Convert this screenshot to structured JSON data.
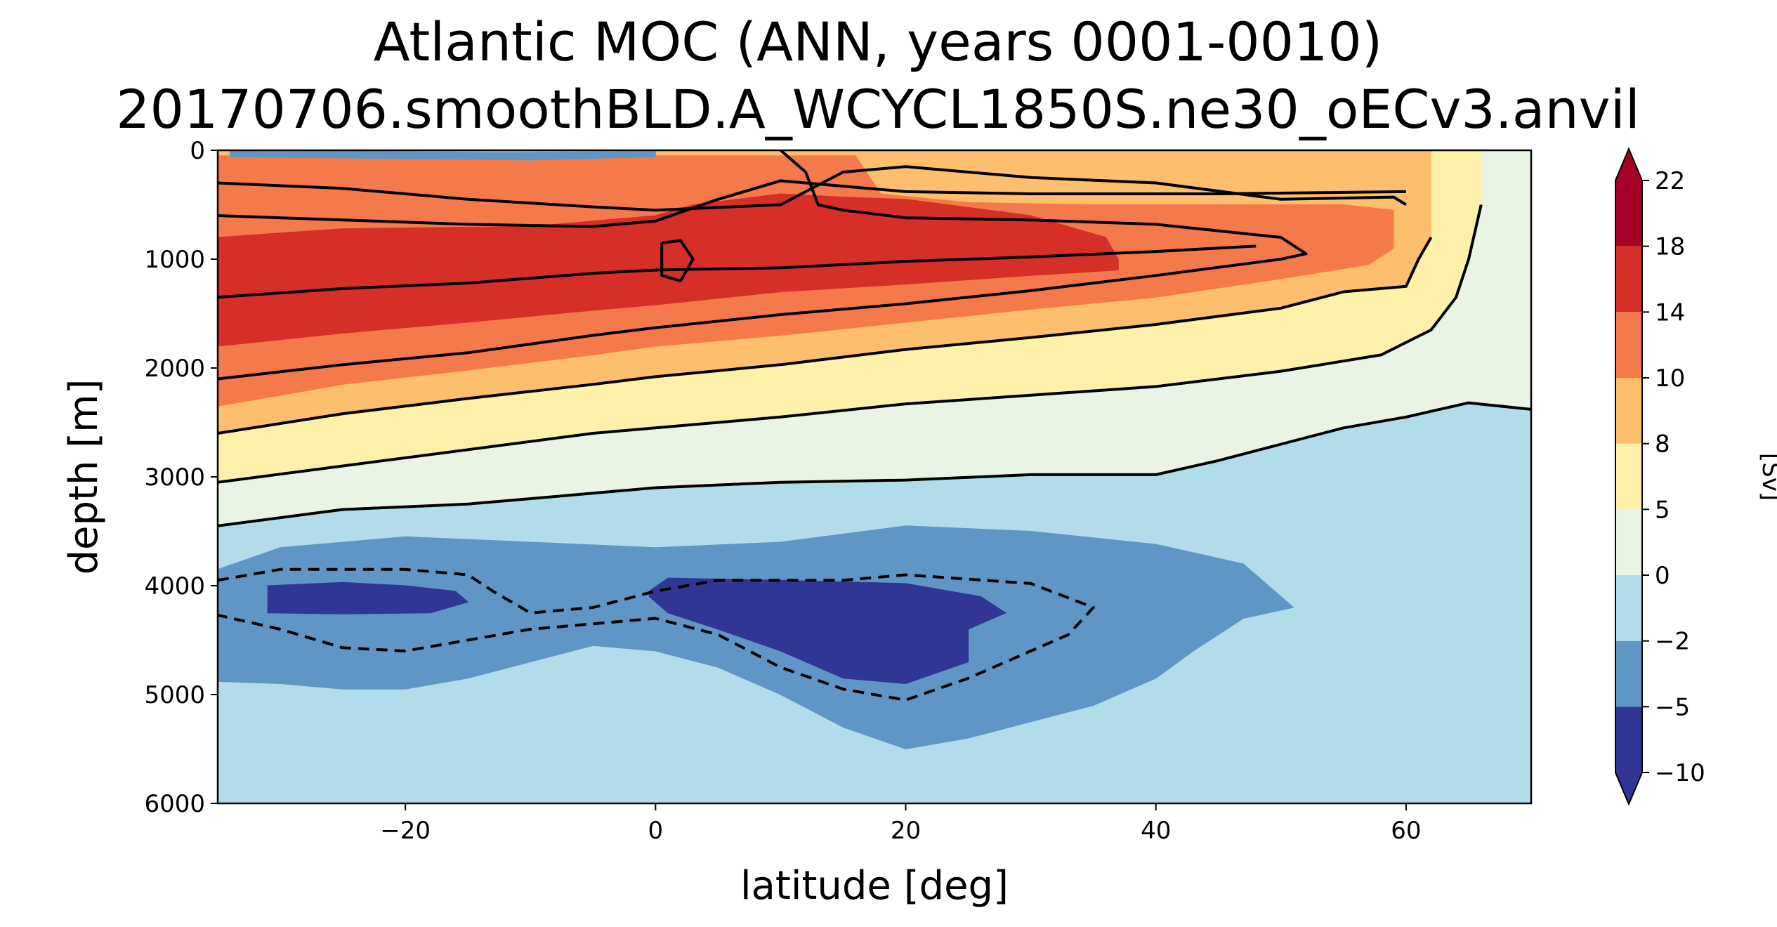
{
  "chart_data": {
    "type": "heatmap",
    "title": "Atlantic MOC (ANN, years 0001-0010)",
    "subtitle": "20170706.smoothBLD.A_WCYCL1850S.ne30_oECv3.anvil",
    "xlabel": "latitude [deg]",
    "ylabel": "depth [m]",
    "xlim": [
      -35,
      70
    ],
    "ylim": [
      6000,
      0
    ],
    "xticks": [
      -20,
      0,
      20,
      40,
      60
    ],
    "xtick_labels": [
      "−20",
      "0",
      "20",
      "40",
      "60"
    ],
    "yticks": [
      0,
      1000,
      2000,
      3000,
      4000,
      5000,
      6000
    ],
    "ytick_labels": [
      "0",
      "1000",
      "2000",
      "3000",
      "4000",
      "5000",
      "6000"
    ],
    "colorbar": {
      "label": "[Sv]",
      "levels": [
        -10,
        -5,
        -2,
        0,
        5,
        8,
        10,
        14,
        18,
        22
      ],
      "level_labels": [
        "−10",
        "−5",
        "−2",
        "0",
        "5",
        "8",
        "10",
        "14",
        "18",
        "22"
      ],
      "colors": [
        "#313695",
        "#6096c5",
        "#b3dcea",
        "#e9f4e4",
        "#fdf1aa",
        "#fdbe6e",
        "#f57a4b",
        "#d62f27",
        "#a50026"
      ],
      "extend": "both",
      "under_color": "#313695",
      "over_color": "#a50026"
    },
    "background_color": "#b3dcea",
    "regions": [
      {
        "level": 0,
        "color": "#e9f4e4",
        "outline": [
          [
            -35,
            120
          ],
          [
            -35,
            3450
          ],
          [
            -25,
            3300
          ],
          [
            -15,
            3250
          ],
          [
            -5,
            3150
          ],
          [
            0,
            3100
          ],
          [
            10,
            3050
          ],
          [
            20,
            3030
          ],
          [
            30,
            2980
          ],
          [
            40,
            2980
          ],
          [
            45,
            2850
          ],
          [
            50,
            2700
          ],
          [
            55,
            2550
          ],
          [
            60,
            2450
          ],
          [
            65,
            2320
          ],
          [
            70,
            2380
          ],
          [
            70,
            0
          ],
          [
            -35,
            0
          ]
        ]
      },
      {
        "level": 5,
        "color": "#fdf1aa",
        "outline": [
          [
            -35,
            120
          ],
          [
            -35,
            3050
          ],
          [
            -25,
            2900
          ],
          [
            -15,
            2750
          ],
          [
            -5,
            2600
          ],
          [
            0,
            2550
          ],
          [
            10,
            2450
          ],
          [
            20,
            2330
          ],
          [
            30,
            2250
          ],
          [
            40,
            2170
          ],
          [
            50,
            2030
          ],
          [
            58,
            1880
          ],
          [
            62,
            1650
          ],
          [
            64,
            1350
          ],
          [
            65,
            1000
          ],
          [
            66,
            500
          ],
          [
            66,
            0
          ],
          [
            -35,
            0
          ]
        ]
      },
      {
        "level": 8,
        "color": "#fdbe6e",
        "outline": [
          [
            -35,
            120
          ],
          [
            -35,
            2600
          ],
          [
            -25,
            2420
          ],
          [
            -15,
            2280
          ],
          [
            -5,
            2150
          ],
          [
            0,
            2080
          ],
          [
            10,
            1970
          ],
          [
            20,
            1830
          ],
          [
            30,
            1720
          ],
          [
            40,
            1600
          ],
          [
            50,
            1450
          ],
          [
            55,
            1300
          ],
          [
            60,
            1250
          ],
          [
            61,
            1000
          ],
          [
            62,
            800
          ],
          [
            62,
            0
          ],
          [
            -35,
            0
          ]
        ]
      },
      {
        "level": 10,
        "color": "#f57a4b",
        "outline": [
          [
            -35,
            120
          ],
          [
            -35,
            2350
          ],
          [
            -25,
            2150
          ],
          [
            -15,
            2020
          ],
          [
            -5,
            1880
          ],
          [
            0,
            1800
          ],
          [
            10,
            1700
          ],
          [
            20,
            1580
          ],
          [
            30,
            1460
          ],
          [
            40,
            1350
          ],
          [
            50,
            1180
          ],
          [
            57,
            1050
          ],
          [
            59,
            900
          ],
          [
            59,
            550
          ],
          [
            55,
            500
          ],
          [
            45,
            500
          ],
          [
            35,
            500
          ],
          [
            25,
            480
          ],
          [
            18,
            400
          ],
          [
            16,
            50
          ],
          [
            10,
            50
          ],
          [
            5,
            50
          ],
          [
            -35,
            50
          ]
        ]
      },
      {
        "level": 14,
        "color": "#d62f27",
        "outline": [
          [
            -35,
            800
          ],
          [
            -35,
            1800
          ],
          [
            -25,
            1680
          ],
          [
            -15,
            1580
          ],
          [
            -5,
            1470
          ],
          [
            0,
            1420
          ],
          [
            10,
            1300
          ],
          [
            20,
            1230
          ],
          [
            30,
            1150
          ],
          [
            37,
            1100
          ],
          [
            37,
            1000
          ],
          [
            36,
            800
          ],
          [
            30,
            600
          ],
          [
            20,
            450
          ],
          [
            15,
            430
          ],
          [
            10,
            400
          ],
          [
            3,
            500
          ],
          [
            0,
            600
          ],
          [
            -10,
            700
          ],
          [
            -25,
            720
          ],
          [
            -35,
            800
          ]
        ]
      },
      {
        "level": -2,
        "color": "#6096c5",
        "outline": [
          [
            -35,
            3850
          ],
          [
            -30,
            3650
          ],
          [
            -20,
            3550
          ],
          [
            -10,
            3600
          ],
          [
            0,
            3650
          ],
          [
            10,
            3600
          ],
          [
            20,
            3450
          ],
          [
            30,
            3500
          ],
          [
            40,
            3620
          ],
          [
            47,
            3800
          ],
          [
            51,
            4200
          ],
          [
            47,
            4300
          ],
          [
            43,
            4600
          ],
          [
            40,
            4850
          ],
          [
            35,
            5100
          ],
          [
            30,
            5250
          ],
          [
            25,
            5400
          ],
          [
            20,
            5500
          ],
          [
            15,
            5300
          ],
          [
            10,
            5000
          ],
          [
            5,
            4750
          ],
          [
            0,
            4600
          ],
          [
            -5,
            4550
          ],
          [
            -10,
            4700
          ],
          [
            -15,
            4850
          ],
          [
            -20,
            4950
          ],
          [
            -25,
            4950
          ],
          [
            -30,
            4900
          ],
          [
            -35,
            4880
          ]
        ]
      },
      {
        "level": -5,
        "color": "#313695",
        "outline": [
          [
            -31,
            4000
          ],
          [
            -25,
            3970
          ],
          [
            -20,
            4000
          ],
          [
            -16,
            4050
          ],
          [
            -15,
            4150
          ],
          [
            -18,
            4250
          ],
          [
            -25,
            4260
          ],
          [
            -31,
            4250
          ]
        ]
      },
      {
        "level": -5,
        "color": "#313695",
        "outline": [
          [
            -0.5,
            4050
          ],
          [
            1,
            3930
          ],
          [
            10,
            3950
          ],
          [
            20,
            3980
          ],
          [
            26,
            4100
          ],
          [
            28,
            4250
          ],
          [
            25,
            4400
          ],
          [
            25,
            4700
          ],
          [
            20,
            4900
          ],
          [
            15,
            4850
          ],
          [
            10,
            4600
          ],
          [
            5,
            4400
          ],
          [
            1,
            4250
          ],
          [
            -0.5,
            4100
          ]
        ]
      },
      {
        "level": -10,
        "color": "#6096c5",
        "outline": [
          [
            -34,
            0
          ],
          [
            -12,
            20
          ],
          [
            0,
            10
          ],
          [
            0,
            60
          ],
          [
            -10,
            90
          ],
          [
            -34,
            60
          ]
        ]
      }
    ],
    "contours": [
      {
        "level": 5,
        "style": "solid",
        "points": [
          [
            -35,
            2600
          ],
          [
            -25,
            2420
          ],
          [
            -15,
            2280
          ],
          [
            -5,
            2150
          ],
          [
            0,
            2080
          ],
          [
            10,
            1970
          ],
          [
            20,
            1830
          ],
          [
            30,
            1720
          ],
          [
            40,
            1600
          ],
          [
            50,
            1450
          ],
          [
            55,
            1300
          ],
          [
            60,
            1250
          ],
          [
            61,
            1000
          ],
          [
            62,
            800
          ]
        ]
      },
      {
        "level": 0,
        "style": "solid",
        "points": [
          [
            -35,
            3050
          ],
          [
            -25,
            2900
          ],
          [
            -15,
            2750
          ],
          [
            -5,
            2600
          ],
          [
            0,
            2550
          ],
          [
            10,
            2450
          ],
          [
            20,
            2330
          ],
          [
            30,
            2250
          ],
          [
            40,
            2170
          ],
          [
            50,
            2030
          ],
          [
            58,
            1880
          ],
          [
            62,
            1650
          ],
          [
            64,
            1350
          ],
          [
            65,
            1000
          ],
          [
            66,
            500
          ]
        ]
      },
      {
        "level": 0,
        "style": "solid",
        "points": [
          [
            -35,
            3450
          ],
          [
            -25,
            3300
          ],
          [
            -15,
            3250
          ],
          [
            -5,
            3150
          ],
          [
            0,
            3100
          ],
          [
            10,
            3050
          ],
          [
            20,
            3030
          ],
          [
            30,
            2980
          ],
          [
            40,
            2980
          ],
          [
            45,
            2850
          ],
          [
            50,
            2700
          ],
          [
            55,
            2550
          ],
          [
            60,
            2450
          ],
          [
            65,
            2320
          ],
          [
            70,
            2380
          ]
        ]
      },
      {
        "level": 10,
        "style": "solid",
        "points": [
          [
            -35,
            1350
          ],
          [
            -25,
            1270
          ],
          [
            -15,
            1220
          ],
          [
            -5,
            1130
          ],
          [
            0,
            1100
          ],
          [
            10,
            1080
          ],
          [
            20,
            1020
          ],
          [
            30,
            980
          ],
          [
            40,
            930
          ],
          [
            48,
            880
          ]
        ]
      },
      {
        "level": 14,
        "style": "solid",
        "points": [
          [
            -35,
            2100
          ],
          [
            -25,
            1970
          ],
          [
            -15,
            1860
          ],
          [
            -5,
            1700
          ],
          [
            0,
            1630
          ],
          [
            10,
            1510
          ],
          [
            20,
            1410
          ],
          [
            30,
            1290
          ],
          [
            40,
            1150
          ],
          [
            50,
            1000
          ],
          [
            52,
            950
          ],
          [
            50,
            800
          ],
          [
            40,
            680
          ],
          [
            30,
            640
          ],
          [
            20,
            620
          ],
          [
            15,
            550
          ],
          [
            13,
            500
          ],
          [
            12,
            200
          ],
          [
            10,
            0
          ]
        ]
      },
      {
        "level": 14,
        "style": "solid",
        "points": [
          [
            -35,
            300
          ],
          [
            -25,
            350
          ],
          [
            -15,
            450
          ],
          [
            -5,
            520
          ],
          [
            0,
            550
          ],
          [
            10,
            500
          ],
          [
            15,
            200
          ],
          [
            20,
            150
          ],
          [
            30,
            250
          ],
          [
            40,
            300
          ],
          [
            50,
            450
          ],
          [
            59,
            430
          ],
          [
            60,
            500
          ]
        ]
      },
      {
        "level": 14,
        "style": "solid",
        "points": [
          [
            -35,
            600
          ],
          [
            -25,
            640
          ],
          [
            -15,
            680
          ],
          [
            -5,
            700
          ],
          [
            0,
            650
          ],
          [
            5,
            450
          ],
          [
            10,
            280
          ],
          [
            15,
            330
          ],
          [
            20,
            380
          ],
          [
            30,
            400
          ],
          [
            45,
            400
          ],
          [
            60,
            380
          ]
        ]
      },
      {
        "level": 18,
        "style": "solid",
        "points": [
          [
            0.5,
            850
          ],
          [
            2,
            830
          ],
          [
            3,
            1000
          ],
          [
            2,
            1200
          ],
          [
            0.5,
            1150
          ],
          [
            0.5,
            850
          ]
        ]
      },
      {
        "level": -2,
        "style": "dashed",
        "points": [
          [
            -35,
            3950
          ],
          [
            -30,
            3850
          ],
          [
            -25,
            3850
          ],
          [
            -20,
            3850
          ],
          [
            -15,
            3900
          ],
          [
            -13,
            4050
          ],
          [
            -10,
            4250
          ],
          [
            -5,
            4200
          ],
          [
            0,
            4050
          ],
          [
            5,
            3950
          ],
          [
            15,
            3950
          ],
          [
            20,
            3900
          ],
          [
            30,
            3980
          ],
          [
            35,
            4200
          ],
          [
            33,
            4450
          ],
          [
            30,
            4600
          ],
          [
            25,
            4850
          ],
          [
            20,
            5050
          ],
          [
            15,
            4950
          ],
          [
            10,
            4750
          ],
          [
            5,
            4450
          ],
          [
            0,
            4300
          ],
          [
            -10,
            4400
          ],
          [
            -20,
            4600
          ],
          [
            -25,
            4570
          ],
          [
            -30,
            4400
          ],
          [
            -35,
            4270
          ]
        ]
      }
    ]
  }
}
